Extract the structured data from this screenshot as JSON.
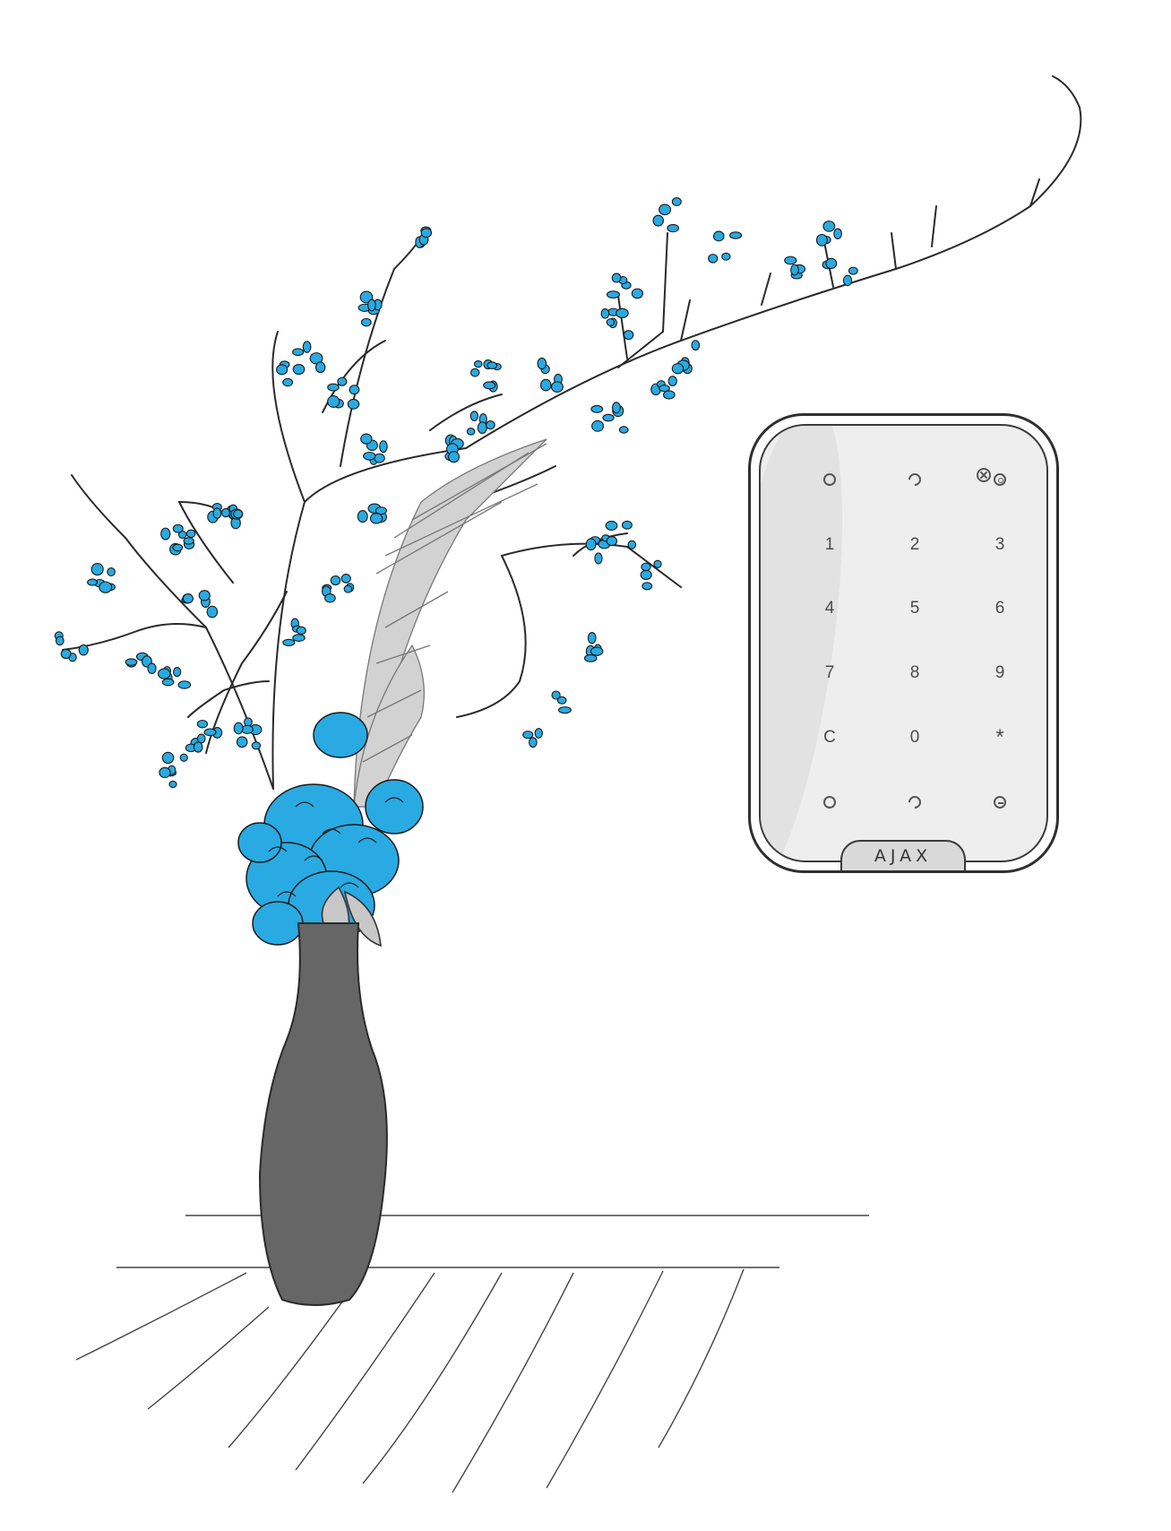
{
  "keypad": {
    "brand": "AJAX",
    "function_keys": [
      "ring-open-icon",
      "ring-partial-icon",
      "ring-target-icon",
      "ring-cross-icon"
    ],
    "rows": [
      [
        "1",
        "2",
        "3"
      ],
      [
        "4",
        "5",
        "6"
      ],
      [
        "7",
        "8",
        "9"
      ],
      [
        "C",
        "0",
        "*"
      ]
    ],
    "bottom_keys": [
      "ring-open-icon",
      "ring-partial-icon",
      "ring-minus-icon"
    ],
    "colors": {
      "body": "#eeeeee",
      "outline": "#2f2f2f",
      "logo_plate": "#d9d9d9"
    }
  },
  "illustration": {
    "vase_color": "#666666",
    "blossom_color": "#29aae2",
    "leaf_color": "#c8c8c8",
    "line_color": "#2a2a2a"
  }
}
